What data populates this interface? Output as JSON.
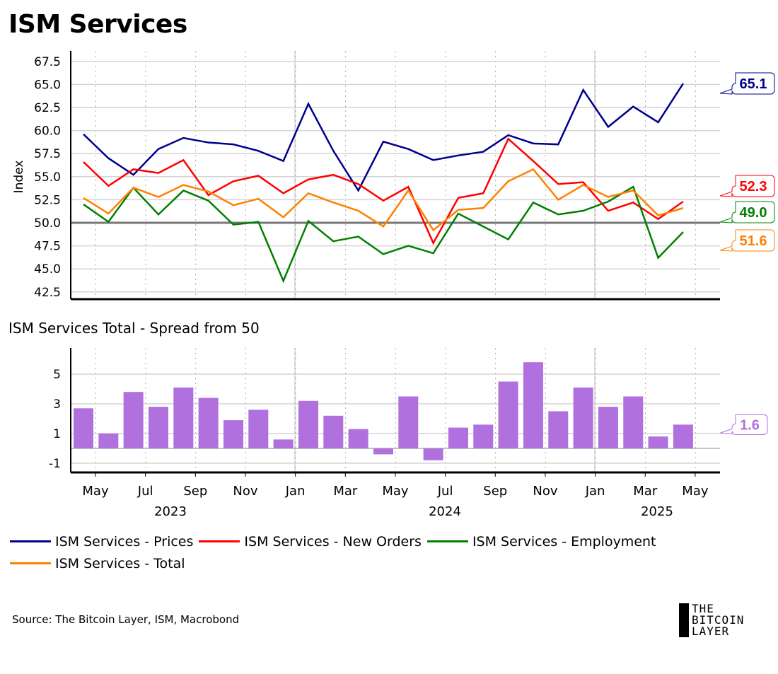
{
  "title": "ISM Services",
  "subtitle": "ISM Services Total - Spread from 50",
  "source": "Source: The Bitcoin Layer, ISM, Macrobond",
  "logo": [
    "THE",
    "BITCOIN",
    "LAYER"
  ],
  "chart_data": [
    {
      "type": "line",
      "title": "ISM Services",
      "ylabel": "Index",
      "ylim": [
        42.5,
        67.5
      ],
      "yticks": [
        "42.5",
        "45.0",
        "47.5",
        "50.0",
        "52.5",
        "55.0",
        "57.5",
        "60.0",
        "62.5",
        "65.0",
        "67.5"
      ],
      "x": [
        "2023-04",
        "2023-05",
        "2023-06",
        "2023-07",
        "2023-08",
        "2023-09",
        "2023-10",
        "2023-11",
        "2023-12",
        "2024-01",
        "2024-02",
        "2024-03",
        "2024-04",
        "2024-05",
        "2024-06",
        "2024-07",
        "2024-08",
        "2024-09",
        "2024-10",
        "2024-11",
        "2024-12",
        "2025-01",
        "2025-02",
        "2025-03",
        "2025-04"
      ],
      "reference_line": 50,
      "series": [
        {
          "name": "ISM Services - Prices",
          "color": "#00008b",
          "last_label": "65.1",
          "values": [
            59.6,
            57.0,
            55.2,
            58.0,
            59.2,
            58.7,
            58.5,
            57.8,
            56.7,
            62.9,
            57.8,
            53.5,
            58.8,
            58.0,
            56.8,
            57.3,
            57.7,
            59.5,
            58.6,
            58.5,
            64.4,
            60.4,
            62.6,
            60.9,
            65.1
          ]
        },
        {
          "name": "ISM Services - New Orders",
          "color": "#ff0000",
          "last_label": "52.3",
          "values": [
            56.6,
            54.0,
            55.8,
            55.4,
            56.8,
            53.0,
            54.5,
            55.1,
            53.2,
            54.7,
            55.2,
            54.2,
            52.4,
            53.9,
            47.8,
            52.7,
            53.2,
            59.1,
            56.7,
            54.2,
            54.4,
            51.3,
            52.2,
            50.4,
            52.3
          ]
        },
        {
          "name": "ISM Services - Employment",
          "color": "#008000",
          "last_label": "49.0",
          "values": [
            52.0,
            50.1,
            53.8,
            50.9,
            53.5,
            52.4,
            49.8,
            50.1,
            43.7,
            50.2,
            48.0,
            48.5,
            46.6,
            47.5,
            46.7,
            51.0,
            49.6,
            48.2,
            52.2,
            50.9,
            51.3,
            52.3,
            53.9,
            46.2,
            49.0
          ]
        },
        {
          "name": "ISM Services - Total",
          "color": "#ff8000",
          "last_label": "51.6",
          "values": [
            52.7,
            51.0,
            53.8,
            52.8,
            54.1,
            53.4,
            51.9,
            52.6,
            50.6,
            53.2,
            52.2,
            51.3,
            49.6,
            53.5,
            49.2,
            51.4,
            51.6,
            54.5,
            55.8,
            52.5,
            54.1,
            52.8,
            53.5,
            50.8,
            51.6
          ]
        }
      ]
    },
    {
      "type": "bar",
      "title": "ISM Services Total - Spread from 50",
      "ylim": [
        -1.6,
        6.8
      ],
      "yticks": [
        "-1",
        "1",
        "3",
        "5"
      ],
      "color": "#b070dd",
      "last_label": "1.6",
      "values": [
        2.7,
        1.0,
        3.8,
        2.8,
        4.1,
        3.4,
        1.9,
        2.6,
        0.6,
        3.2,
        2.2,
        1.3,
        -0.4,
        3.5,
        -0.8,
        1.4,
        1.6,
        4.5,
        5.8,
        2.5,
        4.1,
        2.8,
        3.5,
        0.8,
        1.6
      ]
    }
  ],
  "xaxis": {
    "month_labels": [
      "May",
      "Jul",
      "Sep",
      "Nov",
      "Jan",
      "Mar",
      "May",
      "Jul",
      "Sep",
      "Nov",
      "Jan",
      "Mar",
      "May"
    ],
    "year_labels": [
      "2023",
      "2024",
      "2025"
    ]
  }
}
